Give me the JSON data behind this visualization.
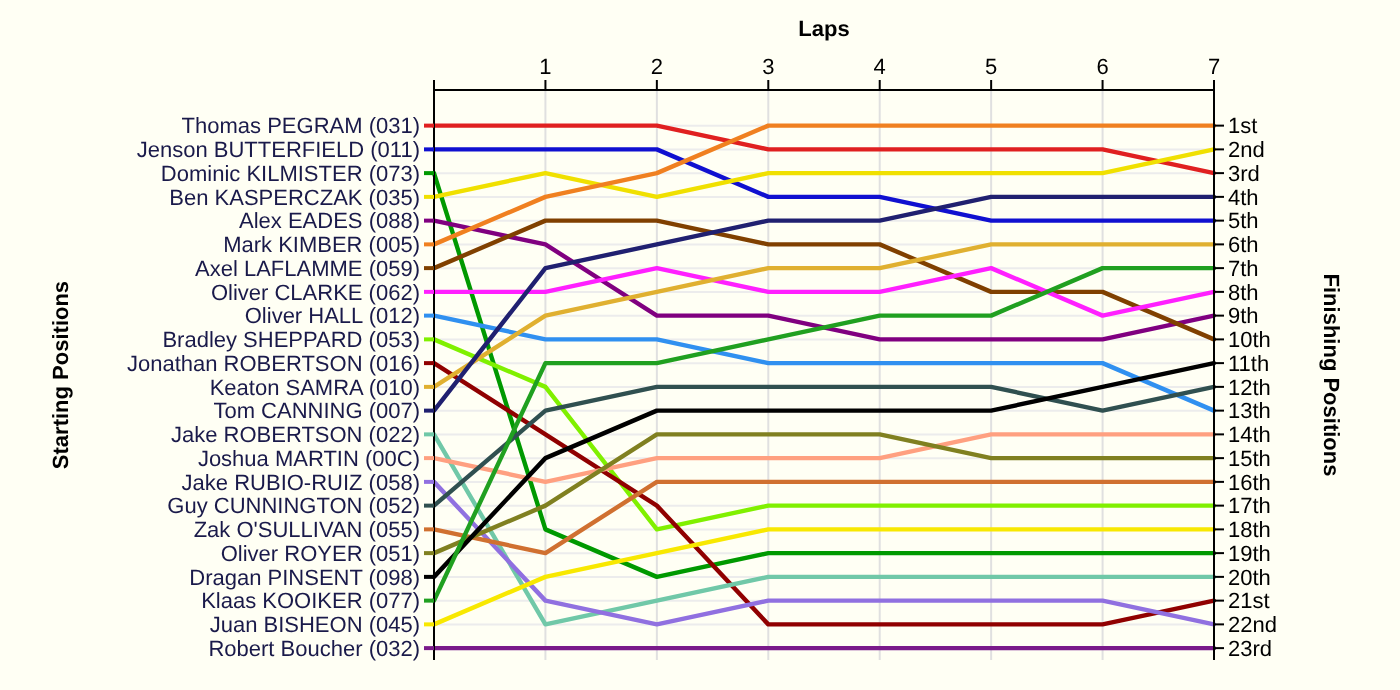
{
  "chart_data": {
    "type": "line",
    "xlabel": "Laps",
    "legend_title": "Starting Positions",
    "legend": "left",
    "y2label": "Finishing Positions",
    "x": [
      0,
      1,
      2,
      3,
      4,
      5,
      6,
      7
    ],
    "xlim": [
      0,
      7
    ],
    "xticks": [
      {
        "value": 0,
        "label": null
      },
      1,
      2,
      3,
      4,
      5,
      6,
      7
    ],
    "y2lim": [
      23.5,
      -0.5
    ],
    "y2ticks": [
      {
        "value": 1,
        "label": "1st"
      },
      {
        "value": 2,
        "label": "2nd"
      },
      {
        "value": 3,
        "label": "3rd"
      },
      {
        "value": 4,
        "label": "4th"
      },
      {
        "value": 5,
        "label": "5th"
      },
      {
        "value": 6,
        "label": "6th"
      },
      {
        "value": 7,
        "label": "7th"
      },
      {
        "value": 8,
        "label": "8th"
      },
      {
        "value": 9,
        "label": "9th"
      },
      {
        "value": 10,
        "label": "10th"
      },
      {
        "value": 11,
        "label": "11th"
      },
      {
        "value": 12,
        "label": "12th"
      },
      {
        "value": 13,
        "label": "13th"
      },
      {
        "value": 14,
        "label": "14th"
      },
      {
        "value": 15,
        "label": "15th"
      },
      {
        "value": 16,
        "label": "16th"
      },
      {
        "value": 17,
        "label": "17th"
      },
      {
        "value": 18,
        "label": "18th"
      },
      {
        "value": 19,
        "label": "19th"
      },
      {
        "value": 20,
        "label": "20th"
      },
      {
        "value": 21,
        "label": "21st"
      },
      {
        "value": 22,
        "label": "22nd"
      },
      {
        "value": 23,
        "label": "23rd"
      }
    ],
    "grid": true,
    "marker": "none",
    "line_style": "solid",
    "series": [
      {
        "name": "Thomas PEGRAM (031)",
        "axis": "y2",
        "color": "#e02020",
        "values": [
          1,
          1,
          1,
          2,
          2,
          2,
          2,
          3
        ]
      },
      {
        "name": "Jenson BUTTERFIELD (011)",
        "axis": "y2",
        "color": "#1010d0",
        "values": [
          2,
          2,
          2,
          4,
          4,
          5,
          5,
          5
        ]
      },
      {
        "name": "Dominic KILMISTER (073)",
        "axis": "y2",
        "color": "#009900",
        "values": [
          3,
          18,
          20,
          19,
          19,
          19,
          19,
          19
        ]
      },
      {
        "name": "Ben KASPERCZAK (035)",
        "axis": "y2",
        "color": "#f0e000",
        "values": [
          4,
          3,
          4,
          3,
          3,
          3,
          3,
          2
        ]
      },
      {
        "name": "Alex EADES (088)",
        "axis": "y2",
        "color": "#800080",
        "values": [
          5,
          6,
          9,
          9,
          10,
          10,
          10,
          9
        ]
      },
      {
        "name": "Mark KIMBER (005)",
        "axis": "y2",
        "color": "#f08020",
        "values": [
          6,
          4,
          3,
          1,
          1,
          1,
          1,
          1
        ]
      },
      {
        "name": "Axel LAFLAMME (059)",
        "axis": "y2",
        "color": "#804000",
        "values": [
          7,
          5,
          5,
          6,
          6,
          8,
          8,
          10
        ]
      },
      {
        "name": "Oliver CLARKE (062)",
        "axis": "y2",
        "color": "#ff20ff",
        "values": [
          8,
          8,
          7,
          8,
          8,
          7,
          9,
          8
        ]
      },
      {
        "name": "Oliver HALL (012)",
        "axis": "y2",
        "color": "#3090f0",
        "values": [
          9,
          10,
          10,
          11,
          11,
          11,
          11,
          13
        ]
      },
      {
        "name": "Bradley SHEPPARD (053)",
        "axis": "y2",
        "color": "#80f000",
        "values": [
          10,
          12,
          18,
          17,
          17,
          17,
          17,
          17
        ]
      },
      {
        "name": "Jonathan ROBERTSON (016)",
        "axis": "y2",
        "color": "#900000",
        "values": [
          11,
          14,
          17,
          22,
          22,
          22,
          22,
          21
        ]
      },
      {
        "name": "Keaton SAMRA (010)",
        "axis": "y2",
        "color": "#e0b030",
        "values": [
          12,
          9,
          8,
          7,
          7,
          6,
          6,
          6
        ]
      },
      {
        "name": "Tom CANNING (007)",
        "axis": "y2",
        "color": "#202070",
        "values": [
          13,
          7,
          6,
          5,
          5,
          4,
          4,
          4
        ]
      },
      {
        "name": "Jake ROBERTSON (022)",
        "axis": "y2",
        "color": "#70c8a8",
        "values": [
          14,
          22,
          21,
          20,
          20,
          20,
          20,
          20
        ]
      },
      {
        "name": "Joshua MARTIN (00C)",
        "axis": "y2",
        "color": "#ffa080",
        "values": [
          15,
          16,
          15,
          15,
          15,
          14,
          14,
          14
        ]
      },
      {
        "name": "Jake RUBIO-RUIZ (058)",
        "axis": "y2",
        "color": "#9070e0",
        "values": [
          16,
          21,
          22,
          21,
          21,
          21,
          21,
          22
        ]
      },
      {
        "name": "Guy CUNNINGTON (052)",
        "axis": "y2",
        "color": "#305050",
        "values": [
          17,
          13,
          12,
          12,
          12,
          12,
          13,
          12
        ]
      },
      {
        "name": "Zak O'SULLIVAN (055)",
        "axis": "y2",
        "color": "#d07030",
        "values": [
          18,
          19,
          16,
          16,
          16,
          16,
          16,
          16
        ]
      },
      {
        "name": "Oliver ROYER (051)",
        "axis": "y2",
        "color": "#808020",
        "values": [
          19,
          17,
          14,
          14,
          14,
          15,
          15,
          15
        ]
      },
      {
        "name": "Dragan PINSENT (098)",
        "axis": "y2",
        "color": "#000000",
        "values": [
          20,
          15,
          13,
          13,
          13,
          13,
          12,
          11
        ]
      },
      {
        "name": "Klaas KOOIKER (077)",
        "axis": "y2",
        "color": "#20a020",
        "values": [
          21,
          11,
          11,
          10,
          9,
          9,
          7,
          7
        ]
      },
      {
        "name": "Juan BISHEON (045)",
        "axis": "y2",
        "color": "#f8e800",
        "values": [
          22,
          20,
          19,
          18,
          18,
          18,
          18,
          18
        ]
      },
      {
        "name": "Robert Boucher (032)",
        "axis": "y2",
        "color": "#7a1a8a",
        "values": [
          23,
          23,
          23,
          23,
          23,
          23,
          23,
          23
        ]
      }
    ]
  }
}
